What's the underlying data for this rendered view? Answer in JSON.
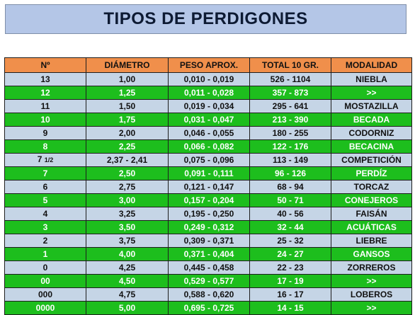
{
  "title": "TIPOS DE  PERDIGONES",
  "headers": [
    "Nº",
    "DIÁMETRO",
    "PESO APROX.",
    "TOTAL 10 GR.",
    "MODALIDAD"
  ],
  "rows": [
    {
      "num": "13",
      "frac": "",
      "diam": "1,00",
      "peso": "0,010 - 0,019",
      "total": "526 - 1104",
      "mod": "NIEBLA",
      "style": "blue"
    },
    {
      "num": "12",
      "frac": "",
      "diam": "1,25",
      "peso": "0,011 - 0,028",
      "total": "357 - 873",
      "mod": ">>",
      "style": "green"
    },
    {
      "num": "11",
      "frac": "",
      "diam": "1,50",
      "peso": "0,019 - 0,034",
      "total": "295 - 641",
      "mod": "MOSTAZILLA",
      "style": "blue"
    },
    {
      "num": "10",
      "frac": "",
      "diam": "1,75",
      "peso": "0,031 - 0,047",
      "total": "213 - 390",
      "mod": "BECADA",
      "style": "green"
    },
    {
      "num": "9",
      "frac": "",
      "diam": "2,00",
      "peso": "0,046 - 0,055",
      "total": "180 - 255",
      "mod": "CODORNIZ",
      "style": "blue"
    },
    {
      "num": "8",
      "frac": "",
      "diam": "2,25",
      "peso": "0,066 - 0,082",
      "total": "122 - 176",
      "mod": "BECACINA",
      "style": "green"
    },
    {
      "num": "7 ",
      "frac": "1/2",
      "diam": "2,37 - 2,41",
      "peso": "0,075 - 0,096",
      "total": "113 - 149",
      "mod": "COMPETICIÓN",
      "style": "blue"
    },
    {
      "num": "7",
      "frac": "",
      "diam": "2,50",
      "peso": "0,091 - 0,111",
      "total": "96 - 126",
      "mod": "PERDÍZ",
      "style": "green"
    },
    {
      "num": "6",
      "frac": "",
      "diam": "2,75",
      "peso": "0,121 - 0,147",
      "total": "68 - 94",
      "mod": "TORCAZ",
      "style": "blue"
    },
    {
      "num": "5",
      "frac": "",
      "diam": "3,00",
      "peso": "0,157 - 0,204",
      "total": "50 - 71",
      "mod": "CONEJEROS",
      "style": "green"
    },
    {
      "num": "4",
      "frac": "",
      "diam": "3,25",
      "peso": "0,195 - 0,250",
      "total": "40 - 56",
      "mod": "FAISÁN",
      "style": "blue"
    },
    {
      "num": "3",
      "frac": "",
      "diam": "3,50",
      "peso": "0,249 - 0,312",
      "total": "32 - 44",
      "mod": "ACUÁTICAS",
      "style": "green"
    },
    {
      "num": "2",
      "frac": "",
      "diam": "3,75",
      "peso": "0,309 - 0,371",
      "total": "25 - 32",
      "mod": "LIEBRE",
      "style": "blue"
    },
    {
      "num": "1",
      "frac": "",
      "diam": "4,00",
      "peso": "0,371 - 0,404",
      "total": "24 - 27",
      "mod": "GANSOS",
      "style": "green"
    },
    {
      "num": "0",
      "frac": "",
      "diam": "4,25",
      "peso": "0,445 - 0,458",
      "total": "22 - 23",
      "mod": "ZORREROS",
      "style": "blue"
    },
    {
      "num": "00",
      "frac": "",
      "diam": "4,50",
      "peso": "0,529 - 0,577",
      "total": "17 - 19",
      "mod": ">>",
      "style": "green"
    },
    {
      "num": "000",
      "frac": "",
      "diam": "4,75",
      "peso": "0,588 - 0,620",
      "total": "16 - 17",
      "mod": "LOBEROS",
      "style": "blue"
    },
    {
      "num": "0000",
      "frac": "",
      "diam": "5,00",
      "peso": "0,695 - 0,725",
      "total": "14 - 15",
      "mod": ">>",
      "style": "green"
    }
  ],
  "colors": {
    "title_bg": "#b4c6e7",
    "header_bg": "#f08f4b",
    "row_blue": "#c5d5e6",
    "row_green": "#1dbe1d"
  }
}
